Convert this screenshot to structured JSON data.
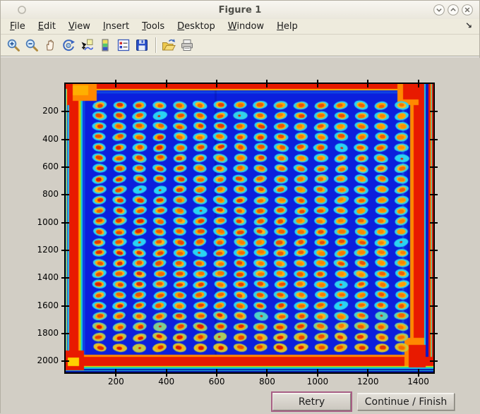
{
  "window": {
    "title": "Figure 1",
    "controls": [
      {
        "name": "minimize",
        "glyph": "chevron-down"
      },
      {
        "name": "maximize",
        "glyph": "chevron-up"
      },
      {
        "name": "close",
        "glyph": "x"
      }
    ]
  },
  "menubar": {
    "items": [
      {
        "label": "File",
        "mnemonic": "F"
      },
      {
        "label": "Edit",
        "mnemonic": "E"
      },
      {
        "label": "View",
        "mnemonic": "V"
      },
      {
        "label": "Insert",
        "mnemonic": "I"
      },
      {
        "label": "Tools",
        "mnemonic": "T"
      },
      {
        "label": "Desktop",
        "mnemonic": "D"
      },
      {
        "label": "Window",
        "mnemonic": "W"
      },
      {
        "label": "Help",
        "mnemonic": "H"
      }
    ],
    "dock_arrow_glyph": "↘"
  },
  "toolbar": {
    "buttons": [
      {
        "name": "zoom-in"
      },
      {
        "name": "zoom-out"
      },
      {
        "name": "pan"
      },
      {
        "name": "rotate-3d"
      },
      {
        "name": "data-cursor"
      },
      {
        "name": "colorbar"
      },
      {
        "name": "legend"
      },
      {
        "name": "save"
      },
      {
        "name": "separator"
      },
      {
        "name": "open"
      },
      {
        "name": "print"
      }
    ]
  },
  "figure": {
    "buttons": [
      {
        "label": "Retry",
        "focused": true
      },
      {
        "label": "Continue / Finish",
        "focused": false
      }
    ]
  },
  "chart_data": {
    "type": "heatmap",
    "title": "",
    "xlabel": "",
    "ylabel": "",
    "colormap": "jet",
    "x_range": [
      0,
      1460
    ],
    "y_range": [
      0,
      2080
    ],
    "x_ticks": [
      200,
      400,
      600,
      800,
      1000,
      1200,
      1400
    ],
    "y_ticks": [
      200,
      400,
      600,
      800,
      1000,
      1200,
      1400,
      1600,
      1800,
      2000
    ],
    "grid": false,
    "image_description": "Intensity scan of a 384-well microplate: deep blue field, hot red plate edges and corner blobs, 16 columns x 24 rows of wells with cyan halos, yellow-orange rings and red cores; bottom rows and right edge run hotter (orange halos).",
    "well_grid": {
      "cols": 16,
      "rows": 24,
      "x_start": 134,
      "x_spacing": 80,
      "y_start": 154,
      "y_spacing": 76
    },
    "colors": {
      "background": "#0a17c8",
      "plate_fill": "#0b1fdd",
      "edge_hot": "#e81a00",
      "edge_warm": "#ff8800",
      "edge_yellow": "#ffe000",
      "edge_green": "#2edd50",
      "edge_cyan": "#1cc8ee",
      "halo": "#2ad4f2",
      "halo_bottom": "#ffc400",
      "well_mid": "#ffa200",
      "well_core": "#dc1800"
    }
  }
}
